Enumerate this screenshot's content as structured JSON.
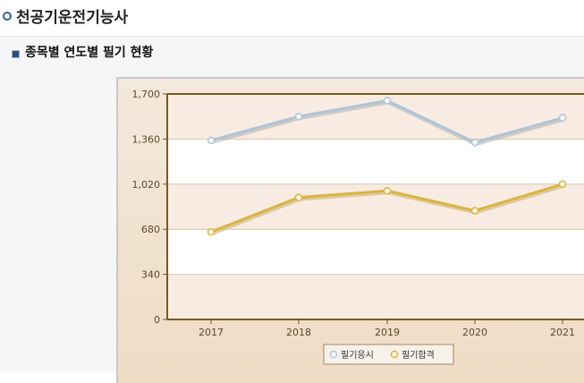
{
  "header": {
    "title": "천공기운전기능사"
  },
  "section": {
    "title": "종목별 연도별 필기 현황"
  },
  "chart_data": {
    "type": "line",
    "x": [
      "2017",
      "2018",
      "2019",
      "2020",
      "2021"
    ],
    "ylim": [
      0,
      1700
    ],
    "yticks": [
      "0",
      "340",
      "680",
      "1,020",
      "1,360",
      "1,700"
    ],
    "grid": true,
    "legend_position": "bottom",
    "series": [
      {
        "name": "필기응시",
        "values": [
          1350,
          1530,
          1650,
          1335,
          1520
        ],
        "color": "#a9c6e0"
      },
      {
        "name": "필기합격",
        "values": [
          660,
          920,
          970,
          820,
          1020
        ],
        "color": "#e1b52a"
      }
    ]
  }
}
